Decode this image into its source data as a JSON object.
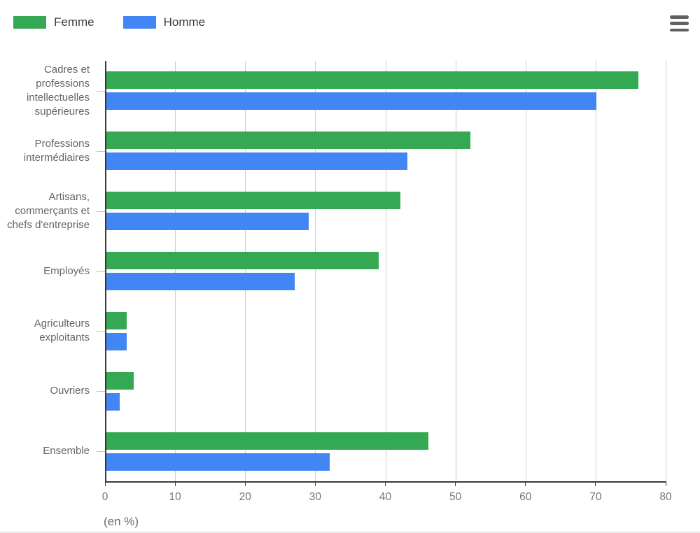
{
  "legend": {
    "items": [
      {
        "label": "Femme",
        "color": "#34a853"
      },
      {
        "label": "Homme",
        "color": "#4285f4"
      }
    ]
  },
  "menu": {
    "icon": "hamburger-icon"
  },
  "axis": {
    "x_ticks": [
      "0",
      "10",
      "20",
      "30",
      "40",
      "50",
      "60",
      "70",
      "80"
    ],
    "x_unit_label": "(en %)"
  },
  "chart_data": {
    "type": "bar",
    "orientation": "horizontal",
    "title": "",
    "xlabel": "(en %)",
    "ylabel": "",
    "xlim": [
      0,
      80
    ],
    "x_tick_step": 10,
    "grid": true,
    "legend_position": "top-left",
    "categories": [
      "Cadres et professions intellectuelles supérieures",
      "Professions intermédiaires",
      "Artisans, commerçants et chefs d'entreprise",
      "Employés",
      "Agriculteurs exploitants",
      "Ouvriers",
      "Ensemble"
    ],
    "series": [
      {
        "name": "Femme",
        "color": "#34a853",
        "values": [
          76,
          52,
          42,
          39,
          3,
          4,
          46
        ]
      },
      {
        "name": "Homme",
        "color": "#4285f4",
        "values": [
          70,
          43,
          29,
          27,
          3,
          2,
          32
        ]
      }
    ]
  },
  "colors": {
    "grid": "#cccccc",
    "axis": "#3a3a3a",
    "tick_label": "#757575",
    "category_label": "#666666",
    "legend_label": "#3c3c3c",
    "menu_icon": "#606060"
  }
}
